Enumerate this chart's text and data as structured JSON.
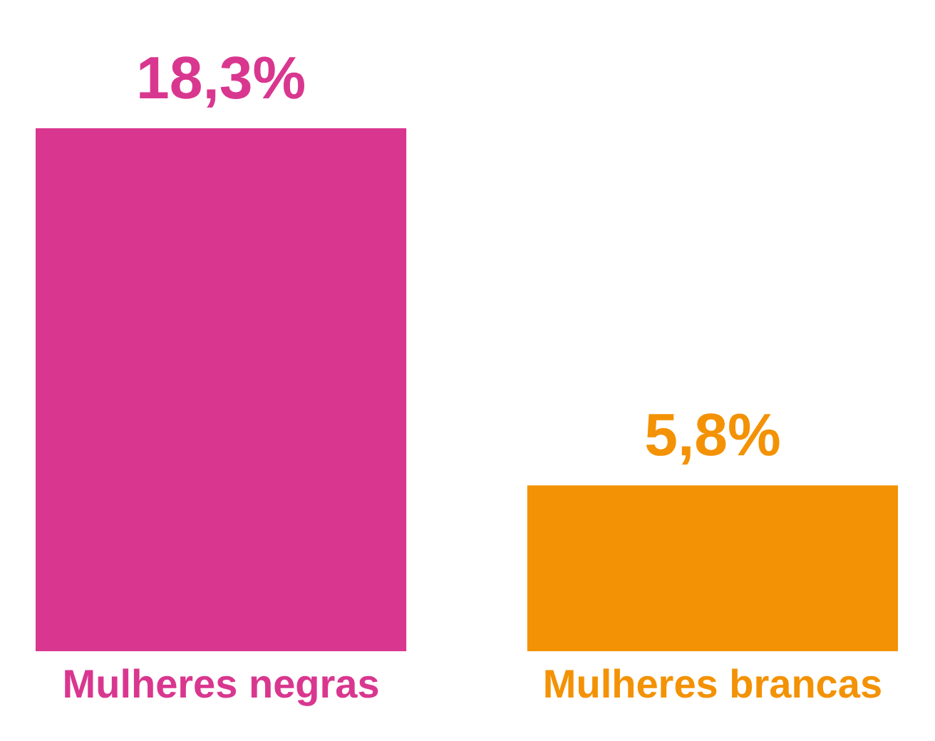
{
  "chart_data": {
    "type": "bar",
    "categories": [
      "Mulheres negras",
      "Mulheres brancas"
    ],
    "values": [
      18.3,
      5.8
    ],
    "colors": [
      "#d9378f",
      "#f39204"
    ],
    "value_labels": [
      "18,3%",
      "5,8%"
    ]
  }
}
